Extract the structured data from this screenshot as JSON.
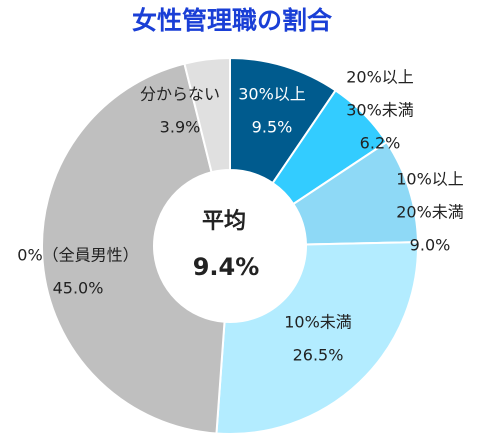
{
  "chart_data": {
    "type": "donut",
    "title": "女性管理職の割合",
    "center_label": "平均",
    "center_value": "9.4%",
    "categories": [
      [
        "30%以上"
      ],
      [
        "20%以上",
        "30%未満"
      ],
      [
        "10%以上",
        "20%未満"
      ],
      [
        "10%未満"
      ],
      [
        "0%（全員男性）"
      ],
      [
        "分からない"
      ]
    ],
    "values": [
      9.5,
      6.2,
      9.0,
      26.5,
      45.0,
      3.9
    ],
    "value_labels": [
      "9.5%",
      "6.2%",
      "9.0%",
      "26.5%",
      "45.0%",
      "3.9%"
    ],
    "colors": [
      "#005b8e",
      "#33ccff",
      "#8ed9f6",
      "#b3ecff",
      "#bfbfbf",
      "#e0e0e0"
    ]
  }
}
